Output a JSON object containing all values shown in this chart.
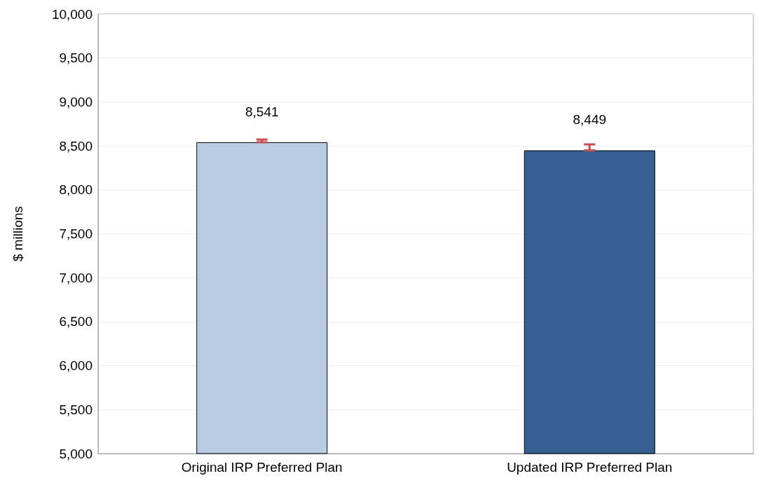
{
  "chart_data": {
    "type": "bar",
    "ylabel": "$ millions",
    "categories": [
      "Original IRP Preferred Plan",
      "Updated IRP Preferred Plan"
    ],
    "values": [
      8541,
      8449
    ],
    "colors": [
      "#b8cce4",
      "#376092"
    ],
    "value_labels": [
      "8,541",
      "8,449"
    ],
    "errors": [
      [
        8541,
        8572
      ],
      [
        8449,
        8517
      ]
    ],
    "ylim": [
      5000,
      10000
    ],
    "yticks": [
      {
        "value": 5000,
        "label": "5,000"
      },
      {
        "value": 5500,
        "label": "5,500"
      },
      {
        "value": 6000,
        "label": "6,000"
      },
      {
        "value": 6500,
        "label": "6,500"
      },
      {
        "value": 7000,
        "label": "7,000"
      },
      {
        "value": 7500,
        "label": "7,500"
      },
      {
        "value": 8000,
        "label": "8,000"
      },
      {
        "value": 8500,
        "label": "8,500"
      },
      {
        "value": 9000,
        "label": "9,000"
      },
      {
        "value": 9500,
        "label": "9,500"
      },
      {
        "value": 10000,
        "label": "10,000"
      }
    ],
    "grid": "y"
  }
}
